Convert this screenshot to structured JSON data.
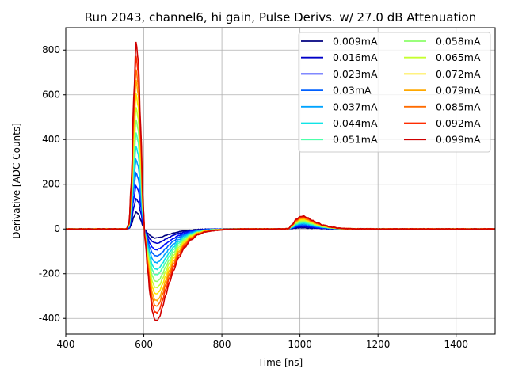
{
  "chart_data": {
    "type": "line",
    "title": "Run 2043, channel6, hi gain, Pulse Derivs. w/ 27.0 dB Attenuation",
    "xlabel": "Time [ns]",
    "ylabel": "Derivative [ADC Counts]",
    "xlim": [
      400,
      1500
    ],
    "ylim": [
      -470,
      900
    ],
    "xticks": [
      400,
      600,
      800,
      1000,
      1200,
      1400
    ],
    "yticks": [
      -400,
      -200,
      0,
      200,
      400,
      600,
      800
    ],
    "grid": true,
    "legend_position": "top-right",
    "legend_columns": 2,
    "shape_points_x": [
      400,
      555,
      562,
      568,
      574,
      580,
      586,
      592,
      598,
      604,
      610,
      616,
      622,
      628,
      634,
      640,
      648,
      656,
      666,
      676,
      690,
      705,
      720,
      740,
      760,
      785,
      810,
      850,
      900,
      960,
      970,
      980,
      990,
      1000,
      1010,
      1020,
      1030,
      1045,
      1060,
      1080,
      1100,
      1120,
      1150,
      1200,
      1300,
      1400,
      1500
    ],
    "shape_points_y": [
      0,
      0,
      0.03,
      0.25,
      0.7,
      1.0,
      0.9,
      0.55,
      0.15,
      -0.15,
      -0.45,
      -0.72,
      -0.9,
      -0.99,
      -1.0,
      -0.96,
      -0.85,
      -0.72,
      -0.58,
      -0.45,
      -0.31,
      -0.2,
      -0.12,
      -0.06,
      -0.03,
      -0.015,
      -0.005,
      0,
      0,
      0,
      0.004,
      0.04,
      0.085,
      0.11,
      0.115,
      0.1,
      0.08,
      0.055,
      0.035,
      0.018,
      0.008,
      0.003,
      0.001,
      0,
      0,
      0,
      0
    ],
    "series": [
      {
        "name": "0.009mA",
        "color": "#00007f",
        "peak": 75,
        "trough": -40,
        "bump": 5
      },
      {
        "name": "0.016mA",
        "color": "#0000c8",
        "peak": 135,
        "trough": -63,
        "bump": 10
      },
      {
        "name": "0.023mA",
        "color": "#0010ff",
        "peak": 192,
        "trough": -92,
        "bump": 14
      },
      {
        "name": "0.03mA",
        "color": "#0060ff",
        "peak": 250,
        "trough": -120,
        "bump": 18
      },
      {
        "name": "0.037mA",
        "color": "#00a4ff",
        "peak": 310,
        "trough": -150,
        "bump": 23
      },
      {
        "name": "0.044mA",
        "color": "#10e4e6",
        "peak": 370,
        "trough": -180,
        "bump": 27
      },
      {
        "name": "0.051mA",
        "color": "#4cffaa",
        "peak": 430,
        "trough": -205,
        "bump": 31
      },
      {
        "name": "0.058mA",
        "color": "#8cff6a",
        "peak": 490,
        "trough": -235,
        "bump": 35
      },
      {
        "name": "0.065mA",
        "color": "#c6ff30",
        "peak": 545,
        "trough": -262,
        "bump": 39
      },
      {
        "name": "0.072mA",
        "color": "#ffe600",
        "peak": 605,
        "trough": -290,
        "bump": 43
      },
      {
        "name": "0.079mA",
        "color": "#ffa800",
        "peak": 665,
        "trough": -320,
        "bump": 47
      },
      {
        "name": "0.085mA",
        "color": "#ff6c00",
        "peak": 715,
        "trough": -345,
        "bump": 50
      },
      {
        "name": "0.092mA",
        "color": "#ff2c00",
        "peak": 775,
        "trough": -375,
        "bump": 54
      },
      {
        "name": "0.099mA",
        "color": "#cf0000",
        "peak": 835,
        "trough": -410,
        "bump": 57
      }
    ]
  }
}
